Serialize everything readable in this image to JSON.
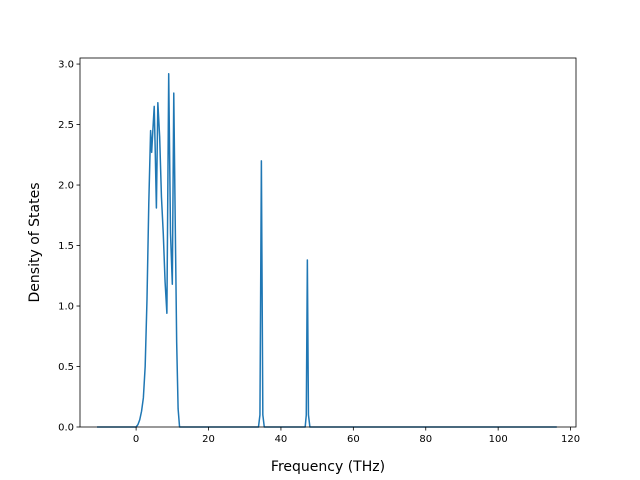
{
  "chart_data": {
    "type": "line",
    "title": "",
    "xlabel": "Frequency (THz)",
    "ylabel": "Density of States",
    "xlim": [
      -15.5,
      121.5
    ],
    "ylim": [
      0,
      3.05
    ],
    "x_ticks": [
      0,
      20,
      40,
      60,
      80,
      100,
      120
    ],
    "y_ticks": [
      0.0,
      0.5,
      1.0,
      1.5,
      2.0,
      2.5,
      3.0
    ],
    "x_tick_labels": [
      "0",
      "20",
      "40",
      "60",
      "80",
      "100",
      "120"
    ],
    "y_tick_labels": [
      "0.0",
      "0.5",
      "1.0",
      "1.5",
      "2.0",
      "2.5",
      "3.0"
    ],
    "grid": false,
    "legend": "none",
    "series": [
      {
        "color": "#1f77b4",
        "x": [
          -10.8,
          0.0,
          0.5,
          1.0,
          1.5,
          2.0,
          2.5,
          3.0,
          3.5,
          4.0,
          4.3,
          4.6,
          5.0,
          5.3,
          5.6,
          6.0,
          6.5,
          7.0,
          7.5,
          8.0,
          8.5,
          9.0,
          9.5,
          10.0,
          10.4,
          10.8,
          11.2,
          11.6,
          12.0,
          12.5,
          33.8,
          34.2,
          34.6,
          35.0,
          35.4,
          35.8,
          46.7,
          47.0,
          47.3,
          47.6,
          48.0,
          116.2
        ],
        "y": [
          0.0,
          0.0,
          0.02,
          0.06,
          0.13,
          0.24,
          0.5,
          1.05,
          1.85,
          2.45,
          2.27,
          2.44,
          2.65,
          2.25,
          1.81,
          2.68,
          2.4,
          1.9,
          1.6,
          1.2,
          0.94,
          2.92,
          1.6,
          1.18,
          2.76,
          1.7,
          0.7,
          0.15,
          0.0,
          0.0,
          0.0,
          0.1,
          2.2,
          0.1,
          0.0,
          0.0,
          0.0,
          0.1,
          1.38,
          0.1,
          0.0,
          0.0
        ]
      }
    ]
  }
}
